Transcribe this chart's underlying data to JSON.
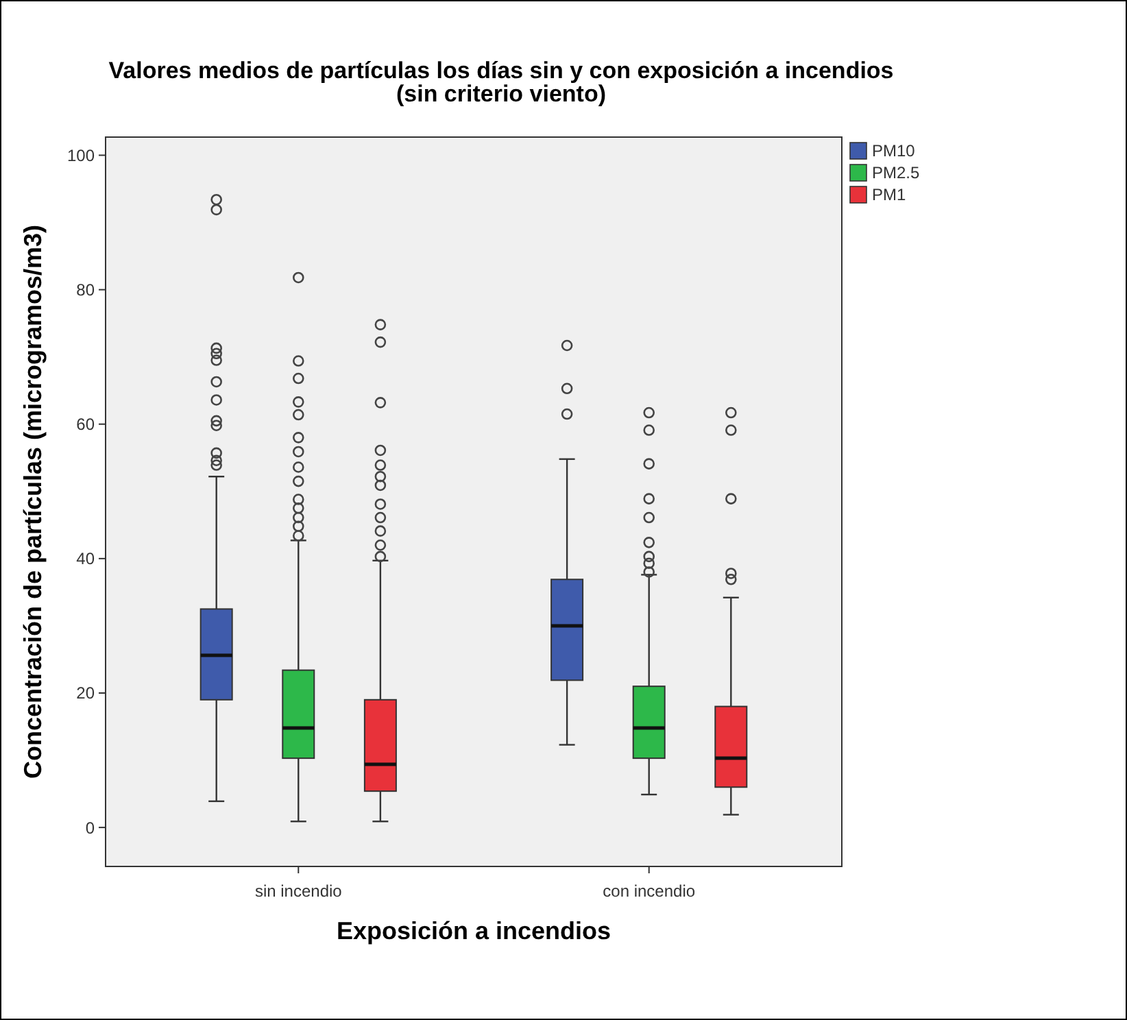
{
  "chart_data": {
    "type": "box",
    "title": "Valores medios de partículas los días sin y con exposición a incendios",
    "subtitle": "(sin criterio viento)",
    "xlabel": "Exposición a incendios",
    "ylabel": "Concentración de partículas (microgramos/m3)",
    "categories": [
      "sin incendio",
      "con incendio"
    ],
    "ylim": [
      -5.8,
      102.7
    ],
    "yticks": [
      0,
      20,
      40,
      60,
      80,
      100
    ],
    "grid": false,
    "legend": "top right",
    "series": [
      {
        "name": "PM10",
        "color": "#3f5bab",
        "boxes": [
          {
            "low": 3.9,
            "q1": 19.0,
            "median": 25.6,
            "q3": 32.5,
            "high": 52.2,
            "outliers": [
              53.9,
              54.6,
              55.7,
              59.8,
              60.5,
              63.6,
              66.3,
              69.5,
              70.5,
              71.3,
              91.9,
              93.4
            ]
          },
          {
            "low": 12.3,
            "q1": 21.9,
            "median": 30.0,
            "q3": 36.9,
            "high": 54.8,
            "outliers": [
              61.5,
              65.3,
              71.7
            ]
          }
        ]
      },
      {
        "name": "PM2.5",
        "color": "#2db84a",
        "boxes": [
          {
            "low": 0.9,
            "q1": 10.3,
            "median": 14.8,
            "q3": 23.4,
            "high": 42.7,
            "outliers": [
              43.4,
              44.8,
              46.1,
              47.5,
              48.8,
              51.5,
              53.6,
              55.9,
              58.0,
              61.4,
              63.3,
              66.8,
              69.4,
              81.8
            ]
          },
          {
            "low": 4.9,
            "q1": 10.3,
            "median": 14.8,
            "q3": 21.0,
            "high": 37.6,
            "outliers": [
              38.0,
              39.3,
              40.3,
              42.4,
              46.1,
              48.9,
              54.1,
              59.1,
              61.7
            ]
          }
        ]
      },
      {
        "name": "PM1",
        "color": "#e8323a",
        "boxes": [
          {
            "low": 0.9,
            "q1": 5.4,
            "median": 9.4,
            "q3": 19.0,
            "high": 39.7,
            "outliers": [
              40.3,
              42.0,
              44.1,
              46.1,
              48.1,
              50.9,
              52.2,
              53.9,
              56.1,
              63.2,
              72.2,
              74.8
            ]
          },
          {
            "low": 1.9,
            "q1": 6.0,
            "median": 10.3,
            "q3": 18.0,
            "high": 34.2,
            "outliers": [
              36.9,
              37.8,
              48.9,
              59.1,
              61.7
            ]
          }
        ]
      }
    ]
  }
}
